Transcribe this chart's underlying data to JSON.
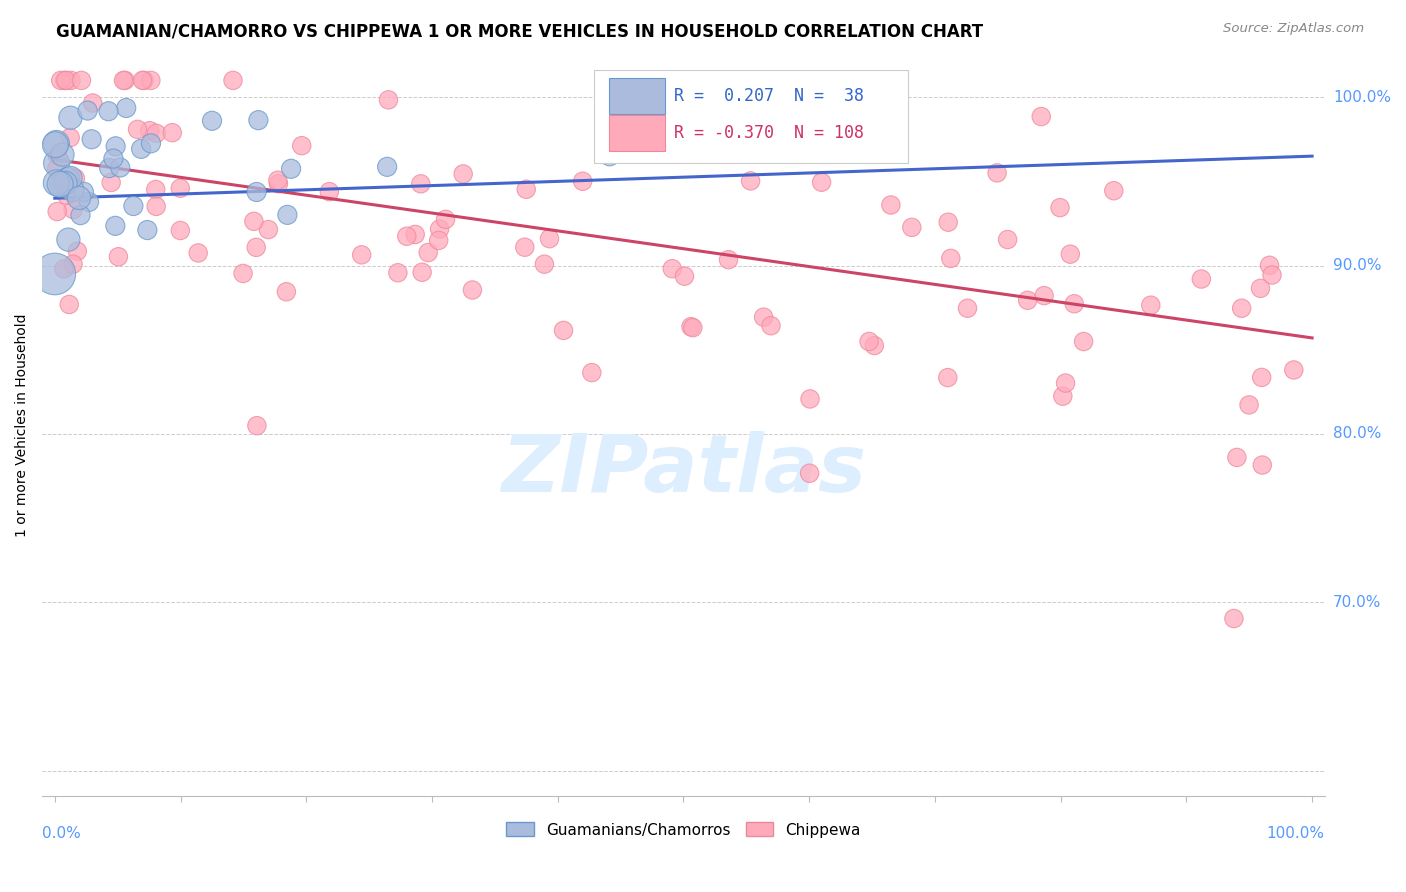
{
  "title": "GUAMANIAN/CHAMORRO VS CHIPPEWA 1 OR MORE VEHICLES IN HOUSEHOLD CORRELATION CHART",
  "source_text": "Source: ZipAtlas.com",
  "ylabel": "1 or more Vehicles in Household",
  "ylim": [
    0.585,
    1.025
  ],
  "xlim": [
    -0.01,
    1.01
  ],
  "ytick_vals": [
    0.6,
    0.7,
    0.8,
    0.9,
    1.0
  ],
  "grid_color": "#cccccc",
  "background_color": "#ffffff",
  "legend_r_blue": "0.207",
  "legend_n_blue": "38",
  "legend_r_pink": "-0.370",
  "legend_n_pink": "108",
  "blue_color": "#aabbdd",
  "blue_edge_color": "#6699cc",
  "pink_color": "#ffaabb",
  "pink_edge_color": "#ee8899",
  "trend_blue_color": "#4466cc",
  "trend_pink_color": "#cc4466",
  "trend_blue_y_start": 0.94,
  "trend_blue_y_end": 0.965,
  "trend_pink_y_start": 0.963,
  "trend_pink_y_end": 0.857,
  "watermark_color": "#ddeeff",
  "title_fontsize": 12,
  "label_fontsize": 11,
  "axis_label_color": "#5599ff",
  "source_color": "#888888"
}
